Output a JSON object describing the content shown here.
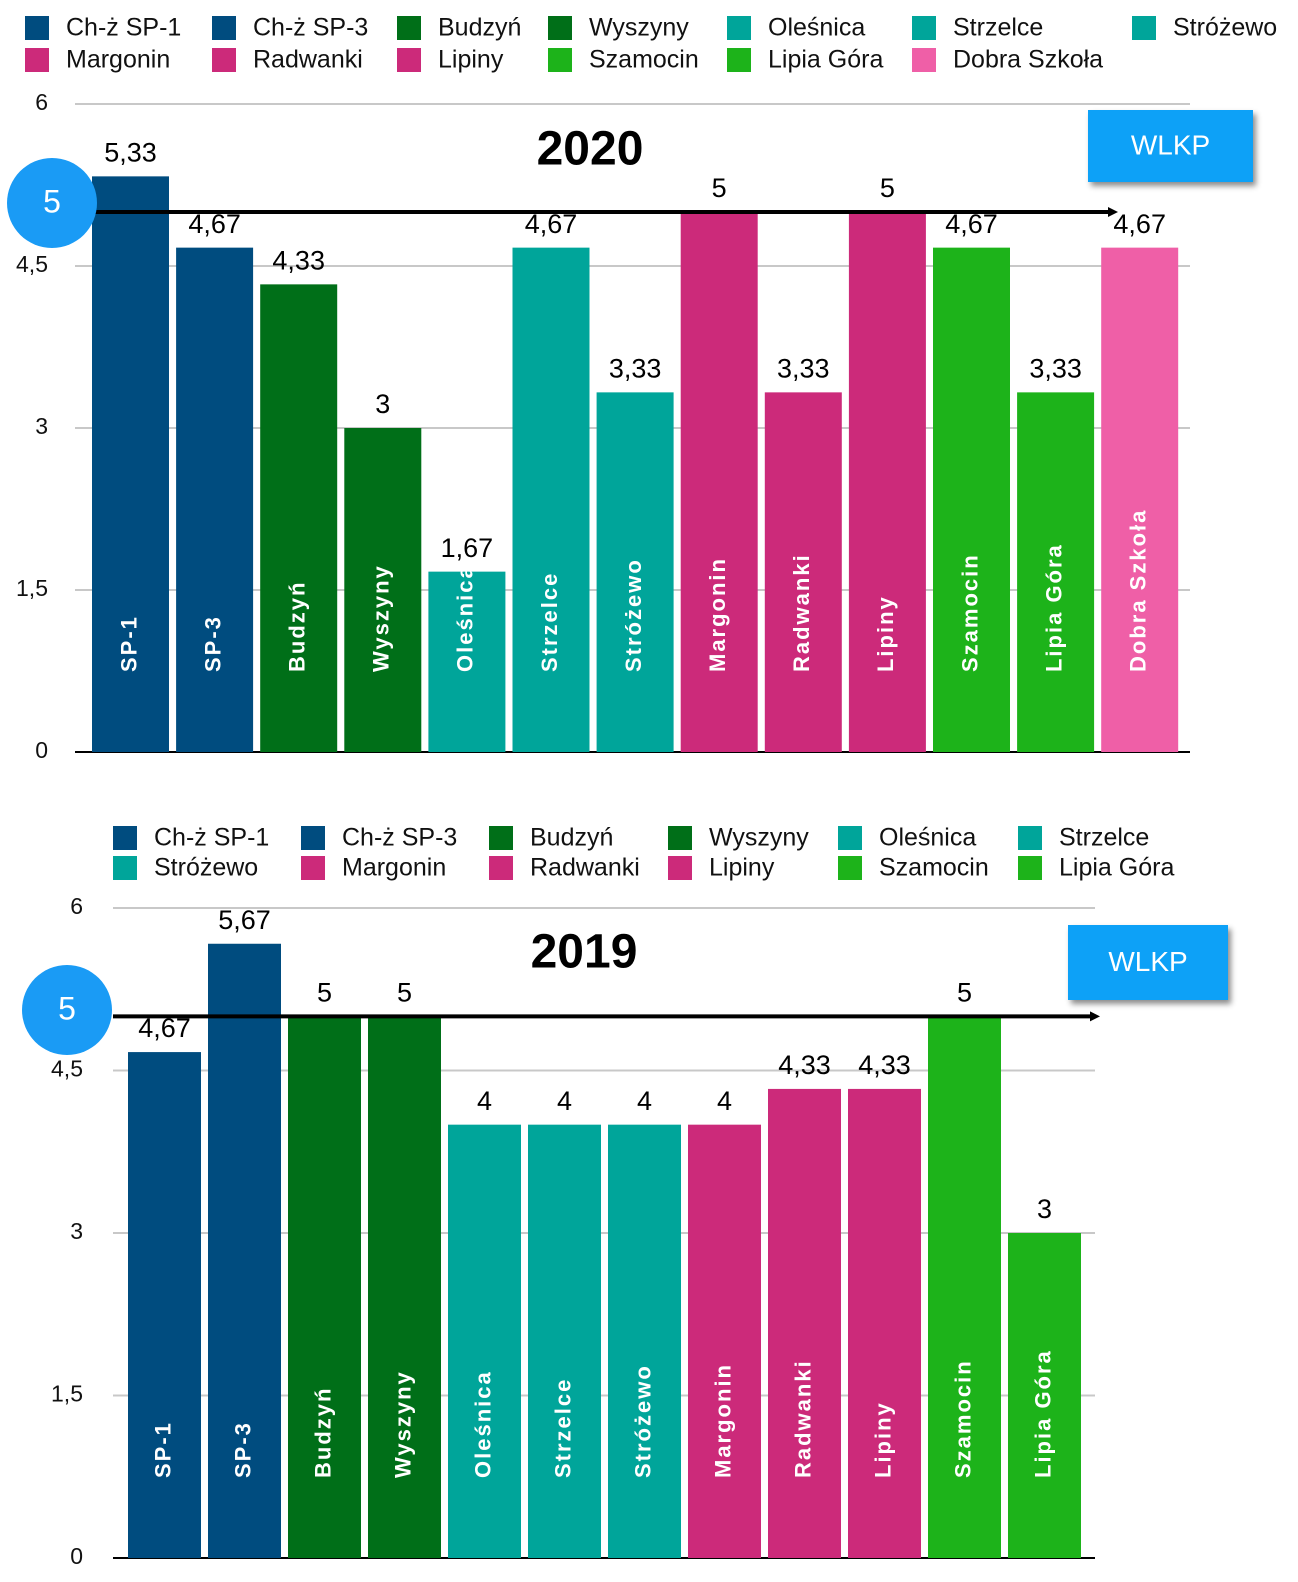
{
  "chart_data": [
    {
      "type": "bar",
      "title": "2020",
      "categories": [
        "SP-1",
        "SP-3",
        "Budzyń",
        "Wyszyny",
        "Oleśnica",
        "Strzelce",
        "Stróżewo",
        "Margonin",
        "Radwanki",
        "Lipiny",
        "Szamocin",
        "Lipia Góra",
        "Dobra Szkoła"
      ],
      "legend": [
        "Ch-ż SP-1",
        "Ch-ż SP-3",
        "Budzyń",
        "Wyszyny",
        "Oleśnica",
        "Strzelce",
        "Stróżewo",
        "Margonin",
        "Radwanki",
        "Lipiny",
        "Szamocin",
        "Lipia Góra",
        "Dobra Szkoła"
      ],
      "values": [
        5.33,
        4.67,
        4.33,
        3,
        1.67,
        4.67,
        3.33,
        5,
        3.33,
        5,
        4.67,
        3.33,
        4.67
      ],
      "value_labels": [
        "5,33",
        "4,67",
        "4,33",
        "3",
        "1,67",
        "4,67",
        "3,33",
        "5",
        "3,33",
        "5",
        "4,67",
        "3,33",
        "4,67"
      ],
      "colors": [
        "#004c7f",
        "#004c7f",
        "#006f18",
        "#006f18",
        "#00a59a",
        "#00a59a",
        "#00a59a",
        "#cc2a7a",
        "#cc2a7a",
        "#cc2a7a",
        "#1db31a",
        "#1db31a",
        "#ef5fa7"
      ],
      "ylim": [
        0,
        6
      ],
      "yticks": [
        0,
        {
          "value": 1.5,
          "label": "1,5"
        },
        3,
        {
          "value": 4.5,
          "label": "4,5"
        },
        6
      ],
      "grid": true,
      "reference_line": {
        "value": 5,
        "label": "WLKP"
      }
    },
    {
      "type": "bar",
      "title": "2019",
      "categories": [
        "SP-1",
        "SP-3",
        "Budzyń",
        "Wyszyny",
        "Oleśnica",
        "Strzelce",
        "Stróżewo",
        "Margonin",
        "Radwanki",
        "Lipiny",
        "Szamocin",
        "Lipia Góra"
      ],
      "legend": [
        "Ch-ż SP-1",
        "Ch-ż SP-3",
        "Budzyń",
        "Wyszyny",
        "Oleśnica",
        "Strzelce",
        "Stróżewo",
        "Margonin",
        "Radwanki",
        "Lipiny",
        "Szamocin",
        "Lipia Góra"
      ],
      "values": [
        4.67,
        5.67,
        5,
        5,
        4,
        4,
        4,
        4,
        4.33,
        4.33,
        5,
        3
      ],
      "value_labels": [
        "4,67",
        "5,67",
        "5",
        "5",
        "4",
        "4",
        "4",
        "4",
        "4,33",
        "4,33",
        "5",
        "3"
      ],
      "colors": [
        "#004c7f",
        "#004c7f",
        "#006f18",
        "#006f18",
        "#00a59a",
        "#00a59a",
        "#00a59a",
        "#cc2a7a",
        "#cc2a7a",
        "#cc2a7a",
        "#1db31a",
        "#1db31a"
      ],
      "ylim": [
        0,
        6
      ],
      "yticks": [
        0,
        {
          "value": 1.5,
          "label": "1,5"
        },
        3,
        {
          "value": 4.5,
          "label": "4,5"
        },
        6
      ],
      "grid": true,
      "reference_line": {
        "value": 5,
        "label": "WLKP"
      }
    }
  ]
}
